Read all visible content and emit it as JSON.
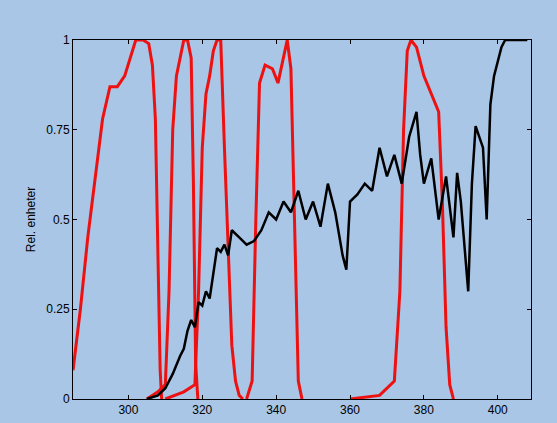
{
  "chart_data": {
    "type": "line",
    "y_label": "Rel. enheter",
    "xlim": [
      285,
      409
    ],
    "ylim": [
      0,
      1
    ],
    "xticks": [
      300,
      320,
      340,
      360,
      380,
      400
    ],
    "yticks": [
      0,
      0.25,
      0.5,
      0.75,
      1
    ],
    "grid": false,
    "series": [
      {
        "color": "#ee1111",
        "x": [
          285,
          287,
          289,
          291,
          293,
          295,
          297,
          299,
          301,
          302,
          304,
          305.5,
          306.5,
          307.3,
          308,
          308.6,
          309
        ],
        "values": [
          0.08,
          0.25,
          0.45,
          0.62,
          0.78,
          0.87,
          0.87,
          0.9,
          0.97,
          1,
          1,
          0.99,
          0.93,
          0.78,
          0.4,
          0.08,
          0
        ]
      },
      {
        "color": "#ee1111",
        "x": [
          305,
          308,
          310,
          311,
          312,
          313,
          314,
          315,
          316,
          317,
          317.6,
          318.2,
          318.8
        ],
        "values": [
          0,
          0.02,
          0.04,
          0.3,
          0.75,
          0.9,
          0.95,
          1,
          1,
          0.95,
          0.6,
          0.1,
          0
        ]
      },
      {
        "color": "#ee1111",
        "x": [
          310,
          315,
          318,
          319,
          320,
          321,
          322,
          323,
          324,
          325,
          326,
          327,
          328,
          329,
          330,
          331
        ],
        "values": [
          0,
          0.02,
          0.04,
          0.3,
          0.7,
          0.85,
          0.9,
          0.97,
          1,
          1,
          0.7,
          0.4,
          0.15,
          0.05,
          0.01,
          0
        ]
      },
      {
        "color": "#ee1111",
        "x": [
          332,
          333.5,
          334.5,
          335.5,
          337,
          339,
          340.5,
          342,
          343,
          344,
          345,
          346,
          347
        ],
        "values": [
          0,
          0.05,
          0.5,
          0.88,
          0.93,
          0.92,
          0.88,
          0.95,
          1,
          0.92,
          0.45,
          0.05,
          0
        ]
      },
      {
        "color": "#ee1111",
        "x": [
          360,
          368,
          372,
          373.5,
          374.5,
          375.5,
          376.5,
          378,
          380,
          382,
          384,
          385,
          386,
          387,
          388
        ],
        "values": [
          0,
          0.01,
          0.05,
          0.3,
          0.75,
          0.97,
          1,
          0.98,
          0.9,
          0.85,
          0.8,
          0.55,
          0.2,
          0.04,
          0
        ]
      },
      {
        "color": "#000000",
        "x": [
          305,
          308,
          310,
          312,
          314,
          315,
          316,
          317,
          318,
          319,
          320,
          321,
          322,
          323,
          324,
          325,
          326,
          327,
          328,
          330,
          332,
          334,
          336,
          338,
          340,
          342,
          344,
          346,
          348,
          350,
          352,
          354,
          356,
          358,
          359,
          360,
          362,
          364,
          366,
          368,
          370,
          372,
          374,
          376,
          378,
          379,
          380,
          382,
          384,
          386,
          388,
          389,
          390,
          392,
          393,
          394,
          396,
          397,
          398,
          399,
          400,
          401,
          402,
          404,
          406,
          408
        ],
        "values": [
          0,
          0.01,
          0.03,
          0.07,
          0.12,
          0.14,
          0.19,
          0.22,
          0.2,
          0.27,
          0.26,
          0.3,
          0.28,
          0.35,
          0.42,
          0.41,
          0.43,
          0.4,
          0.47,
          0.45,
          0.43,
          0.44,
          0.47,
          0.52,
          0.5,
          0.55,
          0.52,
          0.58,
          0.5,
          0.55,
          0.48,
          0.6,
          0.52,
          0.4,
          0.36,
          0.55,
          0.57,
          0.6,
          0.58,
          0.7,
          0.62,
          0.68,
          0.6,
          0.73,
          0.8,
          0.68,
          0.6,
          0.67,
          0.5,
          0.62,
          0.45,
          0.63,
          0.55,
          0.3,
          0.6,
          0.76,
          0.7,
          0.5,
          0.82,
          0.9,
          0.94,
          0.98,
          1,
          1,
          1,
          1
        ]
      }
    ]
  }
}
